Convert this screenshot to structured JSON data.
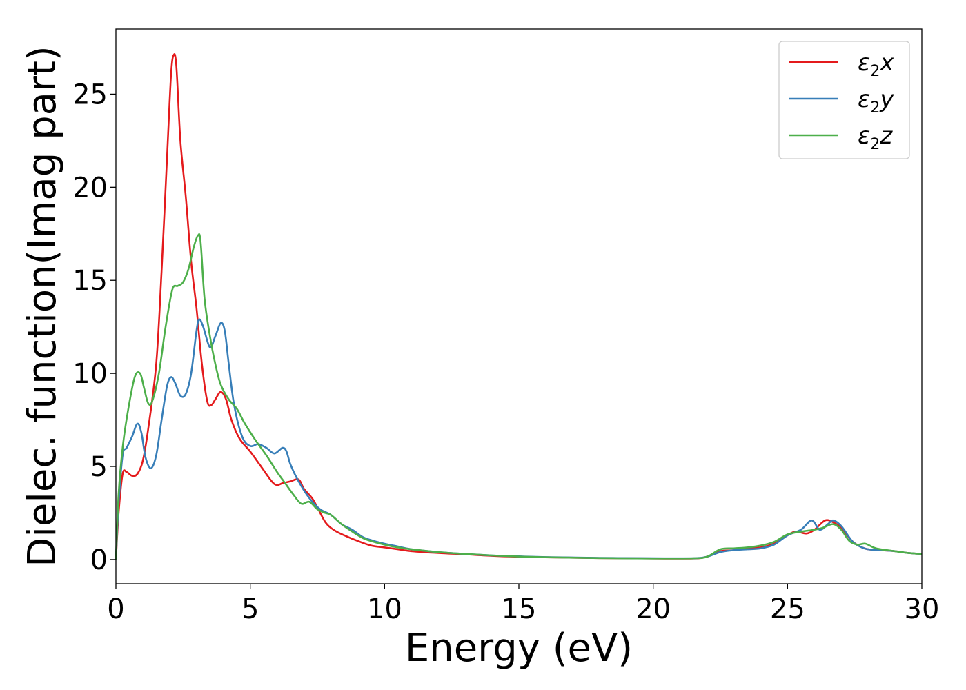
{
  "chart_data": {
    "type": "line",
    "xlabel": "Energy (eV)",
    "ylabel": "Dielec. function(Imag part)",
    "xlim": [
      0,
      30
    ],
    "ylim": [
      -1.3,
      28.5
    ],
    "xticks": [
      0,
      5,
      10,
      15,
      20,
      25,
      30
    ],
    "yticks": [
      0,
      5,
      10,
      15,
      20,
      25
    ],
    "grid": false,
    "legend_position": "top-right",
    "series": [
      {
        "name": "ε2x",
        "legend": {
          "base": "ε",
          "sub": "2",
          "var": "x"
        },
        "color": "#e41a1c",
        "points": [
          [
            0,
            0
          ],
          [
            0.1,
            2.5
          ],
          [
            0.25,
            4.6
          ],
          [
            0.4,
            4.7
          ],
          [
            0.6,
            4.5
          ],
          [
            0.8,
            4.6
          ],
          [
            1.0,
            5.3
          ],
          [
            1.2,
            7.0
          ],
          [
            1.5,
            10.5
          ],
          [
            1.7,
            15.5
          ],
          [
            1.9,
            21.5
          ],
          [
            2.05,
            26.0
          ],
          [
            2.15,
            27.1
          ],
          [
            2.25,
            26.5
          ],
          [
            2.4,
            22.5
          ],
          [
            2.6,
            19.5
          ],
          [
            2.8,
            16.0
          ],
          [
            3.0,
            13.5
          ],
          [
            3.2,
            10.5
          ],
          [
            3.4,
            8.5
          ],
          [
            3.55,
            8.3
          ],
          [
            3.7,
            8.6
          ],
          [
            3.9,
            9.0
          ],
          [
            4.1,
            8.6
          ],
          [
            4.3,
            7.5
          ],
          [
            4.6,
            6.5
          ],
          [
            5.0,
            5.8
          ],
          [
            5.4,
            5.0
          ],
          [
            5.8,
            4.2
          ],
          [
            6.0,
            4.0
          ],
          [
            6.2,
            4.1
          ],
          [
            6.5,
            4.2
          ],
          [
            6.8,
            4.3
          ],
          [
            7.0,
            3.8
          ],
          [
            7.3,
            3.3
          ],
          [
            7.5,
            2.8
          ],
          [
            7.8,
            2.0
          ],
          [
            8.1,
            1.6
          ],
          [
            8.5,
            1.3
          ],
          [
            9.0,
            1.0
          ],
          [
            9.5,
            0.75
          ],
          [
            10.0,
            0.65
          ],
          [
            10.5,
            0.55
          ],
          [
            11,
            0.45
          ],
          [
            12,
            0.35
          ],
          [
            13,
            0.28
          ],
          [
            14,
            0.2
          ],
          [
            15,
            0.15
          ],
          [
            16,
            0.12
          ],
          [
            18,
            0.08
          ],
          [
            20,
            0.06
          ],
          [
            21.5,
            0.06
          ],
          [
            22,
            0.15
          ],
          [
            22.5,
            0.45
          ],
          [
            23,
            0.5
          ],
          [
            23.5,
            0.6
          ],
          [
            24,
            0.65
          ],
          [
            24.5,
            0.85
          ],
          [
            25,
            1.3
          ],
          [
            25.3,
            1.5
          ],
          [
            25.7,
            1.4
          ],
          [
            26.0,
            1.6
          ],
          [
            26.4,
            2.1
          ],
          [
            26.7,
            2.0
          ],
          [
            27.0,
            1.7
          ],
          [
            27.4,
            1.0
          ],
          [
            27.7,
            0.7
          ],
          [
            28,
            0.55
          ],
          [
            28.5,
            0.5
          ],
          [
            29,
            0.45
          ],
          [
            29.5,
            0.35
          ],
          [
            30,
            0.3
          ]
        ]
      },
      {
        "name": "ε2y",
        "legend": {
          "base": "ε",
          "sub": "2",
          "var": "y"
        },
        "color": "#377eb8",
        "points": [
          [
            0,
            0
          ],
          [
            0.1,
            3.0
          ],
          [
            0.25,
            5.6
          ],
          [
            0.4,
            6.0
          ],
          [
            0.6,
            6.6
          ],
          [
            0.8,
            7.3
          ],
          [
            0.95,
            6.8
          ],
          [
            1.1,
            5.5
          ],
          [
            1.3,
            4.9
          ],
          [
            1.5,
            5.6
          ],
          [
            1.7,
            7.5
          ],
          [
            1.9,
            9.3
          ],
          [
            2.05,
            9.8
          ],
          [
            2.2,
            9.5
          ],
          [
            2.4,
            8.8
          ],
          [
            2.6,
            8.9
          ],
          [
            2.8,
            10.0
          ],
          [
            3.0,
            12.3
          ],
          [
            3.1,
            12.9
          ],
          [
            3.25,
            12.5
          ],
          [
            3.5,
            11.4
          ],
          [
            3.7,
            12.0
          ],
          [
            3.9,
            12.7
          ],
          [
            4.05,
            12.3
          ],
          [
            4.2,
            10.5
          ],
          [
            4.4,
            8.3
          ],
          [
            4.7,
            6.6
          ],
          [
            5.0,
            6.1
          ],
          [
            5.3,
            6.2
          ],
          [
            5.6,
            6.0
          ],
          [
            5.9,
            5.7
          ],
          [
            6.2,
            6.0
          ],
          [
            6.35,
            5.8
          ],
          [
            6.5,
            5.1
          ],
          [
            6.8,
            4.2
          ],
          [
            7.2,
            3.3
          ],
          [
            7.6,
            2.7
          ],
          [
            8.0,
            2.4
          ],
          [
            8.4,
            1.9
          ],
          [
            8.8,
            1.6
          ],
          [
            9.2,
            1.2
          ],
          [
            9.6,
            1.0
          ],
          [
            10.0,
            0.85
          ],
          [
            10.5,
            0.7
          ],
          [
            11,
            0.55
          ],
          [
            12,
            0.4
          ],
          [
            13,
            0.3
          ],
          [
            14,
            0.22
          ],
          [
            15,
            0.17
          ],
          [
            16,
            0.13
          ],
          [
            18,
            0.09
          ],
          [
            20,
            0.07
          ],
          [
            21.5,
            0.07
          ],
          [
            22,
            0.15
          ],
          [
            22.5,
            0.4
          ],
          [
            23,
            0.5
          ],
          [
            23.5,
            0.55
          ],
          [
            24,
            0.6
          ],
          [
            24.5,
            0.8
          ],
          [
            25,
            1.3
          ],
          [
            25.5,
            1.6
          ],
          [
            25.9,
            2.1
          ],
          [
            26.2,
            1.6
          ],
          [
            26.5,
            1.9
          ],
          [
            26.7,
            2.1
          ],
          [
            27.0,
            1.8
          ],
          [
            27.4,
            1.0
          ],
          [
            27.7,
            0.7
          ],
          [
            28,
            0.55
          ],
          [
            28.5,
            0.5
          ],
          [
            29,
            0.45
          ],
          [
            29.5,
            0.35
          ],
          [
            30,
            0.3
          ]
        ]
      },
      {
        "name": "ε2z",
        "legend": {
          "base": "ε",
          "sub": "2",
          "var": "z"
        },
        "color": "#4daf4a",
        "points": [
          [
            0,
            0
          ],
          [
            0.1,
            3.5
          ],
          [
            0.25,
            6.0
          ],
          [
            0.45,
            8.0
          ],
          [
            0.7,
            9.8
          ],
          [
            0.9,
            10.0
          ],
          [
            1.05,
            9.2
          ],
          [
            1.2,
            8.4
          ],
          [
            1.35,
            8.5
          ],
          [
            1.6,
            10.0
          ],
          [
            1.85,
            12.5
          ],
          [
            2.1,
            14.5
          ],
          [
            2.3,
            14.7
          ],
          [
            2.5,
            14.9
          ],
          [
            2.7,
            15.6
          ],
          [
            2.9,
            16.8
          ],
          [
            3.05,
            17.4
          ],
          [
            3.15,
            17.1
          ],
          [
            3.3,
            14.0
          ],
          [
            3.5,
            12.0
          ],
          [
            3.7,
            10.5
          ],
          [
            3.9,
            9.4
          ],
          [
            4.2,
            8.6
          ],
          [
            4.5,
            8.1
          ],
          [
            4.8,
            7.3
          ],
          [
            5.2,
            6.4
          ],
          [
            5.6,
            5.6
          ],
          [
            6.0,
            4.7
          ],
          [
            6.3,
            4.1
          ],
          [
            6.6,
            3.5
          ],
          [
            6.9,
            3.0
          ],
          [
            7.2,
            3.1
          ],
          [
            7.5,
            2.7
          ],
          [
            7.8,
            2.5
          ],
          [
            8.0,
            2.4
          ],
          [
            8.4,
            1.9
          ],
          [
            8.8,
            1.5
          ],
          [
            9.2,
            1.15
          ],
          [
            9.6,
            0.95
          ],
          [
            10.0,
            0.8
          ],
          [
            10.5,
            0.65
          ],
          [
            11,
            0.55
          ],
          [
            12,
            0.4
          ],
          [
            13,
            0.3
          ],
          [
            14,
            0.22
          ],
          [
            15,
            0.16
          ],
          [
            16,
            0.12
          ],
          [
            18,
            0.08
          ],
          [
            20,
            0.06
          ],
          [
            21.5,
            0.07
          ],
          [
            22,
            0.15
          ],
          [
            22.5,
            0.55
          ],
          [
            23,
            0.6
          ],
          [
            23.5,
            0.65
          ],
          [
            24,
            0.75
          ],
          [
            24.5,
            0.95
          ],
          [
            25,
            1.35
          ],
          [
            25.5,
            1.5
          ],
          [
            26.0,
            1.6
          ],
          [
            26.3,
            1.7
          ],
          [
            26.7,
            1.9
          ],
          [
            27.0,
            1.6
          ],
          [
            27.3,
            1.0
          ],
          [
            27.6,
            0.8
          ],
          [
            27.9,
            0.85
          ],
          [
            28.3,
            0.6
          ],
          [
            29,
            0.45
          ],
          [
            29.5,
            0.35
          ],
          [
            30,
            0.3
          ]
        ]
      }
    ]
  }
}
